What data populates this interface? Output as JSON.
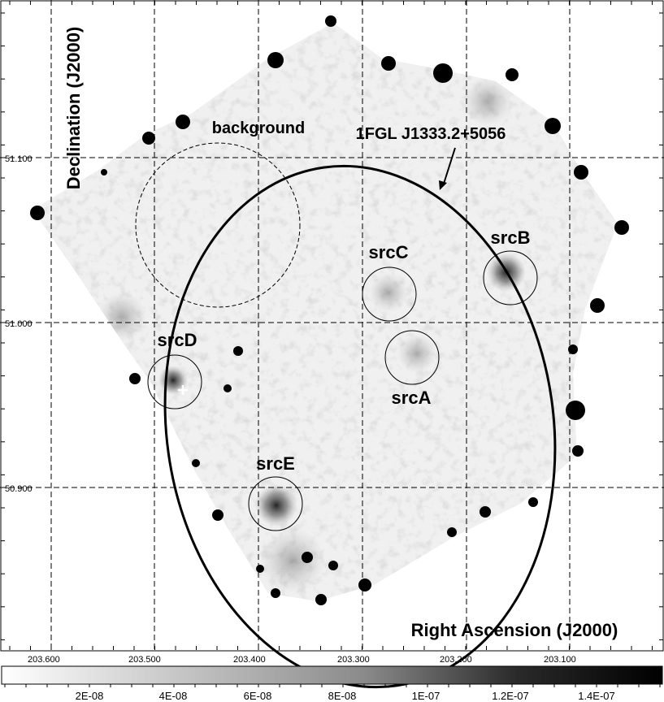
{
  "labels": {
    "ylabel": "Declination (J2000)",
    "xlabel": "Right Ascension (J2000)",
    "fermi_source": "1FGL J1333.2+5056",
    "background": "background"
  },
  "sources": [
    "srcA",
    "srcB",
    "srcC",
    "srcD",
    "srcE"
  ],
  "ra_ticks": [
    "203.600",
    "203.500",
    "203.400",
    "203.300",
    "203.200",
    "203.100"
  ],
  "dec_ticks": [
    "51.100",
    "51.000",
    "50.900"
  ],
  "colorbar": {
    "labels": [
      "2E-08",
      "4E-08",
      "6E-08",
      "8E-08",
      "1E-07",
      "1.2E-07",
      "1.4E-07"
    ],
    "colormap": "grayscale, white (low) to black (high)"
  },
  "colors": {
    "background": "#ffffff",
    "lines": "#000000",
    "marker": "#ffffff"
  }
}
